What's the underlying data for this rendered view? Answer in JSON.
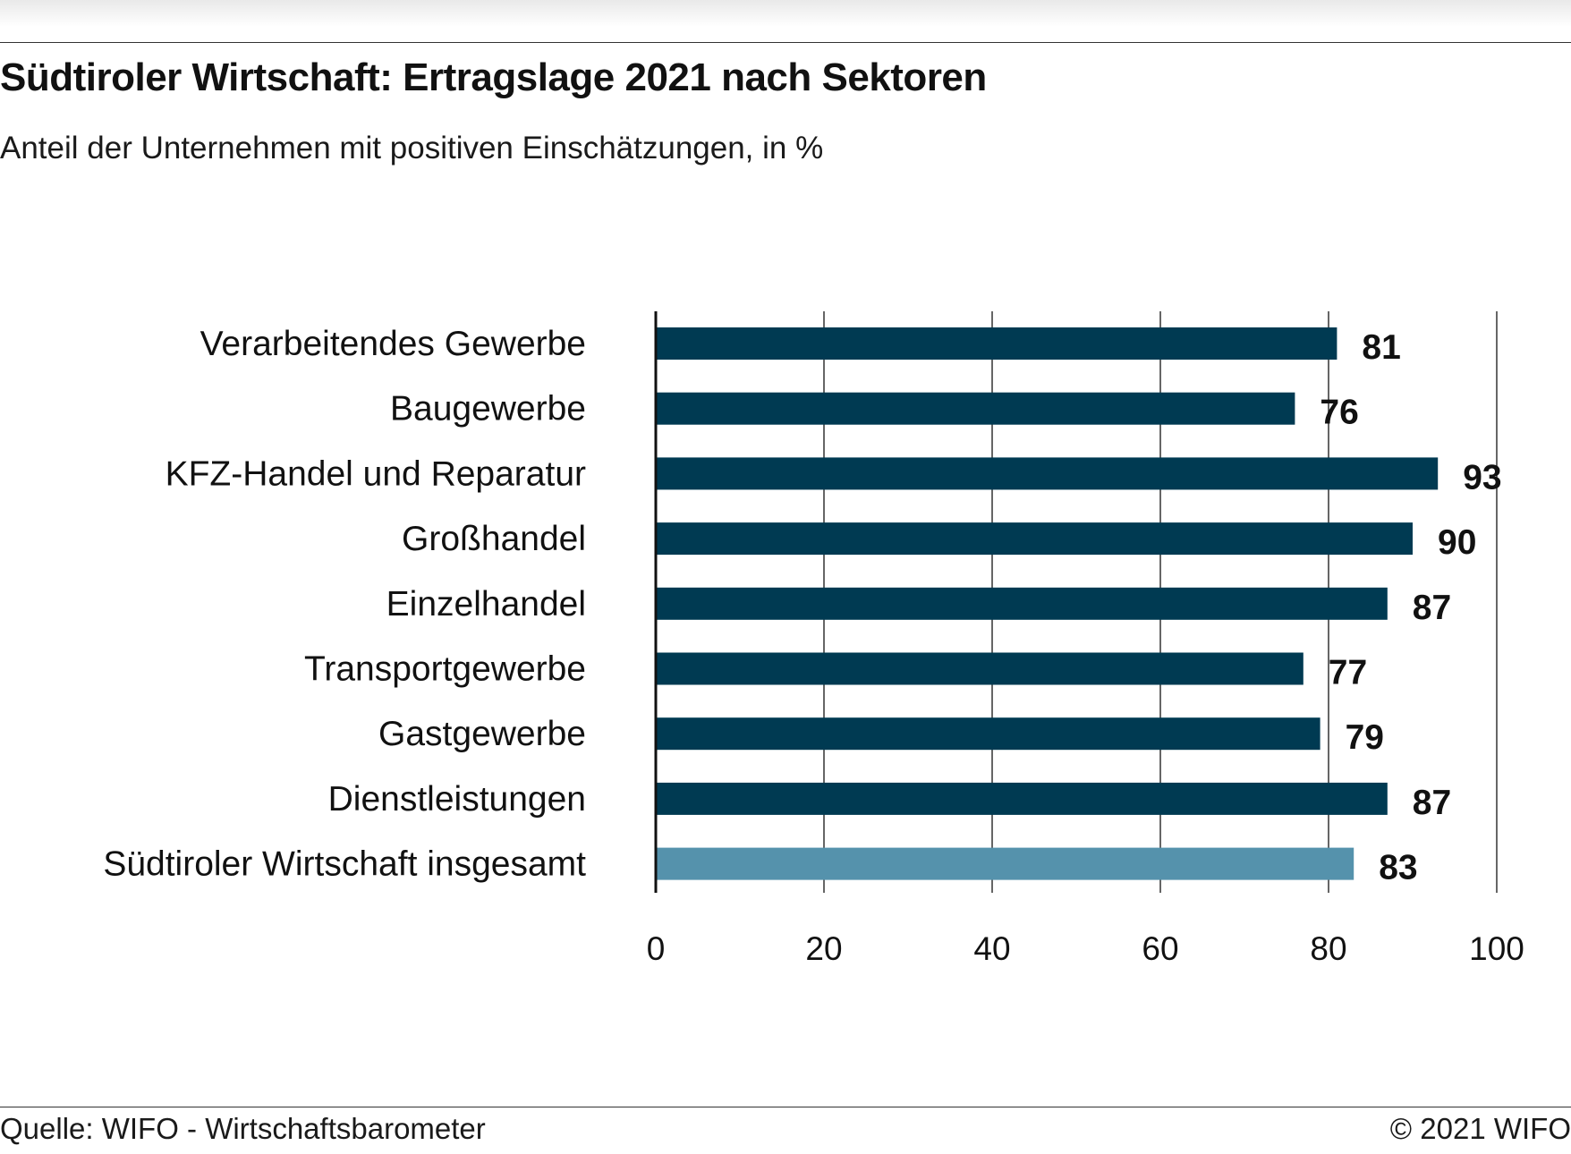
{
  "title": "Südtiroler Wirtschaft: Ertragslage 2021 nach Sektoren",
  "subtitle": "Anteil der Unternehmen mit positiven Einschätzungen, in %",
  "source": "Quelle: WIFO - Wirtschaftsbarometer",
  "copyright": "© 2021 WIFO",
  "chart_data": {
    "type": "bar",
    "orientation": "horizontal",
    "categories": [
      "Verarbeitendes Gewerbe",
      "Baugewerbe",
      "KFZ-Handel und Reparatur",
      "Großhandel",
      "Einzelhandel",
      "Transportgewerbe",
      "Gastgewerbe",
      "Dienstleistungen",
      "Südtiroler Wirtschaft insgesamt"
    ],
    "values": [
      81,
      76,
      93,
      90,
      87,
      77,
      79,
      87,
      83
    ],
    "xlim": [
      0,
      100
    ],
    "xticks": [
      0,
      20,
      40,
      60,
      80,
      100
    ],
    "grid": true,
    "colors": {
      "sector": "#003a52",
      "total": "#5592ac",
      "grid": "#333333"
    },
    "highlight_index": 8
  }
}
